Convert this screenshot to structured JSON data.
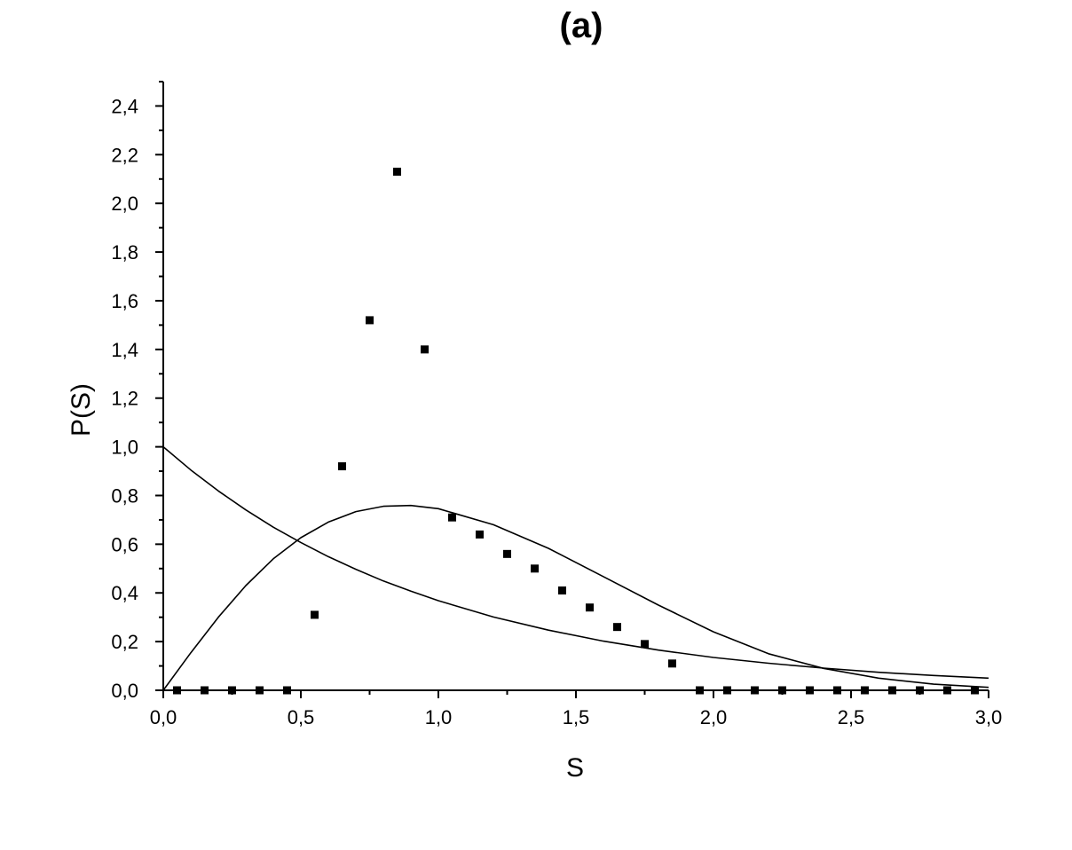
{
  "chart_data": {
    "type": "scatter",
    "title": "(a)",
    "xlabel": "S",
    "ylabel": "P(S)",
    "xlim": [
      0.0,
      3.0
    ],
    "ylim": [
      0.0,
      2.5
    ],
    "x_ticks": [
      0.0,
      0.5,
      1.0,
      1.5,
      2.0,
      2.5,
      3.0
    ],
    "x_tick_labels": [
      "0,0",
      "0,5",
      "1,0",
      "1,5",
      "2,0",
      "2,5",
      "3,0"
    ],
    "y_ticks": [
      0.0,
      0.2,
      0.4,
      0.6,
      0.8,
      1.0,
      1.2,
      1.4,
      1.6,
      1.8,
      2.0,
      2.2,
      2.4
    ],
    "y_tick_labels": [
      "0,0",
      "0,2",
      "0,4",
      "0,6",
      "0,8",
      "1,0",
      "1,2",
      "1,4",
      "1,6",
      "1,8",
      "2,0",
      "2,2",
      "2,4"
    ],
    "grid": false,
    "legend": "none",
    "series": [
      {
        "kind": "points",
        "marker": "square",
        "x": [
          0.05,
          0.15,
          0.25,
          0.35,
          0.45,
          0.55,
          0.65,
          0.75,
          0.85,
          0.95,
          1.05,
          1.15,
          1.25,
          1.35,
          1.45,
          1.55,
          1.65,
          1.75,
          1.85,
          1.95,
          2.05,
          2.15,
          2.25,
          2.35,
          2.45,
          2.55,
          2.65,
          2.75,
          2.85,
          2.95
        ],
        "y": [
          0.0,
          0.0,
          0.0,
          0.0,
          0.0,
          0.31,
          0.92,
          1.52,
          2.13,
          1.4,
          0.71,
          0.64,
          0.56,
          0.5,
          0.41,
          0.34,
          0.26,
          0.19,
          0.11,
          0.0,
          0.0,
          0.0,
          0.0,
          0.0,
          0.0,
          0.0,
          0.0,
          0.0,
          0.0,
          0.0
        ]
      },
      {
        "kind": "curve",
        "x": [
          0.0,
          0.1,
          0.2,
          0.3,
          0.4,
          0.5,
          0.6,
          0.7,
          0.8,
          0.9,
          1.0,
          1.2,
          1.4,
          1.6,
          1.8,
          2.0,
          2.2,
          2.4,
          2.6,
          2.8,
          3.0
        ],
        "y": [
          0.0,
          0.154,
          0.3,
          0.43,
          0.54,
          0.627,
          0.691,
          0.734,
          0.756,
          0.759,
          0.746,
          0.68,
          0.583,
          0.467,
          0.35,
          0.24,
          0.15,
          0.09,
          0.05,
          0.025,
          0.012
        ]
      },
      {
        "kind": "curve",
        "x": [
          0.0,
          0.1,
          0.2,
          0.3,
          0.4,
          0.5,
          0.6,
          0.7,
          0.8,
          0.9,
          1.0,
          1.2,
          1.4,
          1.6,
          1.8,
          2.0,
          2.2,
          2.4,
          2.6,
          2.8,
          3.0
        ],
        "y": [
          1.0,
          0.905,
          0.819,
          0.741,
          0.67,
          0.607,
          0.549,
          0.497,
          0.449,
          0.407,
          0.368,
          0.301,
          0.247,
          0.202,
          0.165,
          0.135,
          0.111,
          0.091,
          0.074,
          0.061,
          0.05
        ]
      }
    ]
  }
}
